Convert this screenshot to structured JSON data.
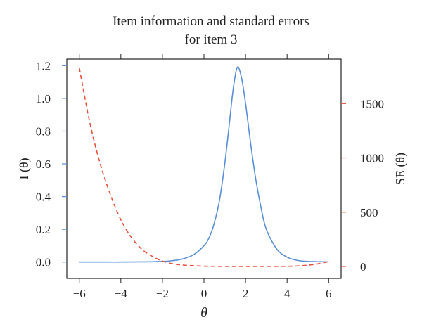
{
  "chart_data": {
    "type": "line",
    "title": [
      "Item information and standard errors",
      "for item 3"
    ],
    "xlabel": "θ",
    "ylabel_left": "I (θ)",
    "ylabel_right": "SE (θ)",
    "xlim": [
      -6.6,
      6.6
    ],
    "ylim_left": [
      -0.1,
      1.24
    ],
    "ylim_right": [
      -110,
      1910
    ],
    "xticks": [
      -6,
      -4,
      -2,
      0,
      2,
      4,
      6
    ],
    "xtick_labels": [
      "−6",
      "−4",
      "−2",
      "0",
      "2",
      "4",
      "6"
    ],
    "yticks_left": [
      0.0,
      0.2,
      0.4,
      0.6,
      0.8,
      1.0,
      1.2
    ],
    "ytick_labels_left": [
      "0.0",
      "0.2",
      "0.4",
      "0.6",
      "0.8",
      "1.0",
      "1.2"
    ],
    "yticks_right": [
      0,
      500,
      1000,
      1500
    ],
    "ytick_labels_right": [
      "0",
      "500",
      "1000",
      "1500"
    ],
    "colors": {
      "information": "#5a8fd6",
      "se": "#e8503a",
      "frame": "#222222"
    },
    "series": [
      {
        "axis": "left",
        "style": "solid",
        "x": [
          -6,
          -5,
          -4,
          -3,
          -2,
          -1.5,
          -1,
          -0.5,
          0,
          0.25,
          0.5,
          0.75,
          1,
          1.2,
          1.4,
          1.6,
          1.8,
          2,
          2.25,
          2.5,
          2.75,
          3,
          3.5,
          4,
          4.5,
          5,
          6
        ],
        "values": [
          0,
          0,
          0,
          0.001,
          0.004,
          0.009,
          0.02,
          0.045,
          0.1,
          0.15,
          0.24,
          0.38,
          0.6,
          0.82,
          1.05,
          1.19,
          1.13,
          0.97,
          0.72,
          0.5,
          0.33,
          0.2,
          0.08,
          0.03,
          0.01,
          0.004,
          0.001
        ]
      },
      {
        "axis": "right",
        "style": "dashed",
        "x": [
          -6,
          -5.5,
          -5,
          -4.5,
          -4,
          -3.5,
          -3,
          -2.5,
          -2,
          -1.5,
          -1,
          -0.5,
          0,
          1,
          2,
          3,
          4,
          4.5,
          5,
          5.5,
          6
        ],
        "values": [
          1830,
          1330,
          950,
          660,
          430,
          270,
          160,
          95,
          50,
          25,
          13,
          7,
          3,
          1,
          0.5,
          1,
          2,
          5,
          12,
          25,
          45
        ]
      }
    ]
  }
}
